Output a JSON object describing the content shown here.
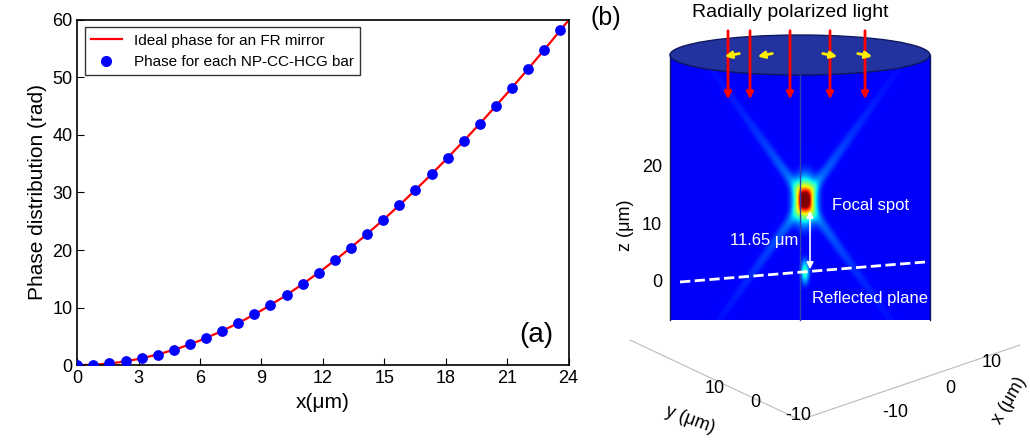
{
  "chart_data": {
    "type": "line",
    "panel_label": "(a)",
    "x_label": "x(μm)",
    "y_label": "Phase distribution (rad)",
    "xlim": [
      0,
      24
    ],
    "ylim": [
      0,
      60
    ],
    "xticks": [
      0,
      3,
      6,
      9,
      12,
      15,
      18,
      21,
      24
    ],
    "yticks": [
      0,
      10,
      20,
      30,
      40,
      50,
      60
    ],
    "legend": "upper left",
    "series": [
      {
        "name": "Ideal phase for an FR mirror",
        "type": "line",
        "color": "#ff0000",
        "line_style": "solid",
        "x": [
          0,
          1,
          2,
          3,
          4,
          5,
          6,
          7,
          8,
          9,
          10,
          11,
          12,
          13,
          14,
          15,
          16,
          17,
          18,
          19,
          20,
          21,
          22,
          23,
          24
        ],
        "values": [
          0,
          0.12,
          0.48,
          1.08,
          1.92,
          2.99,
          4.29,
          5.82,
          7.56,
          9.52,
          11.69,
          14.06,
          16.63,
          19.38,
          22.31,
          25.41,
          28.68,
          32.11,
          35.68,
          39.41,
          43.26,
          47.25,
          51.36,
          55.59,
          59.93
        ]
      },
      {
        "name": "Phase for each NP-CC-HCG bar",
        "type": "scatter",
        "color": "#0000ff",
        "marker": "o",
        "x": [
          0,
          0.79,
          1.57,
          2.36,
          3.15,
          3.93,
          4.72,
          5.51,
          6.29,
          7.08,
          7.87,
          8.65,
          9.44,
          10.23,
          11.01,
          11.8,
          12.59,
          13.37,
          14.16,
          14.95,
          15.73,
          16.52,
          17.31,
          18.09,
          18.88,
          19.67,
          20.45,
          21.24,
          22.03,
          22.81,
          23.6
        ],
        "values": [
          0,
          0.08,
          0.3,
          0.67,
          1.19,
          1.85,
          2.67,
          3.62,
          4.71,
          5.95,
          7.32,
          8.81,
          10.45,
          12.22,
          14.09,
          16.1,
          18.23,
          20.44,
          22.79,
          25.25,
          27.78,
          30.44,
          33.2,
          36.01,
          38.95,
          41.98,
          45.04,
          48.23,
          51.49,
          54.78,
          58.18
        ]
      }
    ]
  },
  "panel_b": {
    "label": "(b)",
    "title": "Radially polarized light",
    "focal_label": "Focal spot",
    "plane_label": "Reflected plane",
    "distance_label": "11.65 μm",
    "z_label": "z (μm)",
    "z_ticks": [
      "20",
      "10",
      "0"
    ],
    "y_label": "y (μm)",
    "y_ticks": [
      "10",
      "0",
      "-10"
    ],
    "x_label": "x (μm)",
    "x_ticks": [
      "-10",
      "0",
      "10"
    ]
  }
}
